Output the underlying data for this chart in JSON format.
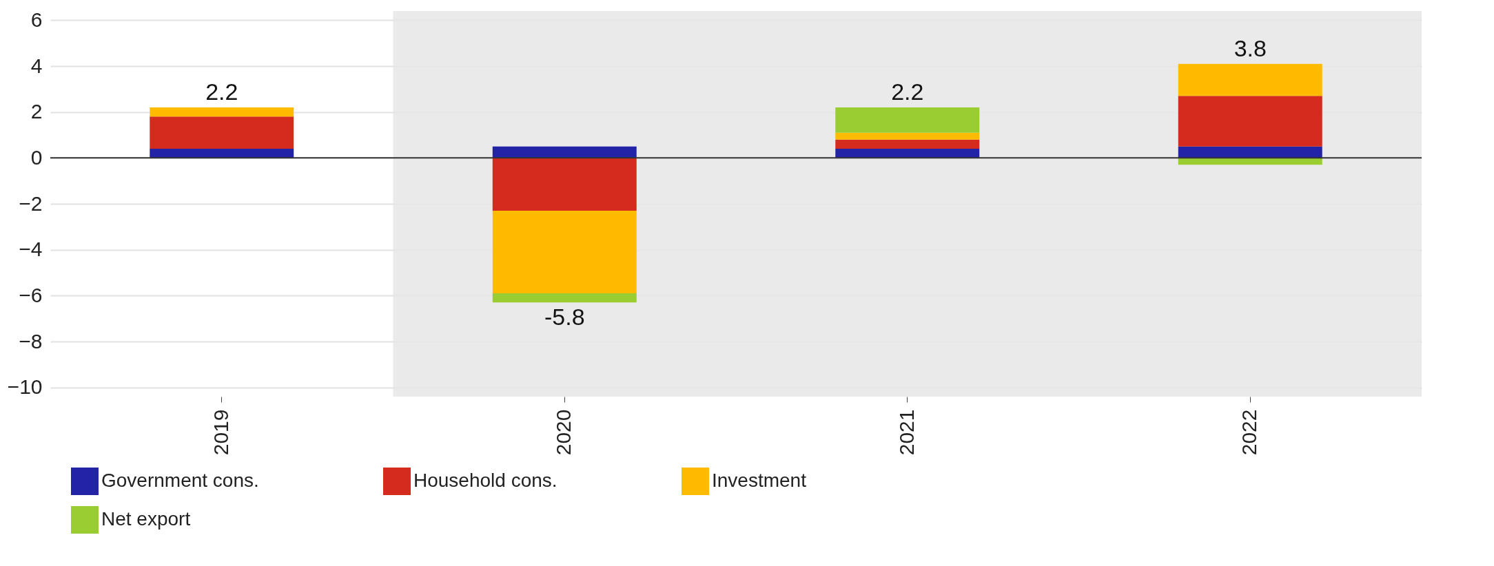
{
  "chart_data": {
    "type": "bar",
    "stacked": true,
    "categories": [
      "2019",
      "2020",
      "2021",
      "2022"
    ],
    "series": [
      {
        "name": "Government cons.",
        "color": "#2323a8",
        "values": [
          0.4,
          0.5,
          0.4,
          0.5
        ]
      },
      {
        "name": "Household cons.",
        "color": "#d52b1e",
        "values": [
          1.4,
          -2.3,
          0.4,
          2.2
        ]
      },
      {
        "name": "Investment",
        "color": "#ffbb00",
        "values": [
          0.4,
          -3.6,
          0.3,
          1.4
        ]
      },
      {
        "name": "Net export",
        "color": "#9acd32",
        "values": [
          0,
          -0.4,
          1.1,
          -0.3
        ]
      }
    ],
    "totals": [
      "2.2",
      "-5.8",
      "2.2",
      "3.8"
    ],
    "ylim": [
      -10.4,
      6.4
    ],
    "yticks": [
      -10,
      -8,
      -6,
      -4,
      -2,
      0,
      2,
      4,
      6
    ],
    "grid": "y",
    "legend": "bottom",
    "bands": [
      {
        "axis": "x",
        "from": "2020",
        "to": "2022",
        "color": "#e6e6e6"
      }
    ],
    "ref_lines": [
      {
        "axis": "y",
        "value": 0,
        "color": "#333333"
      }
    ]
  }
}
